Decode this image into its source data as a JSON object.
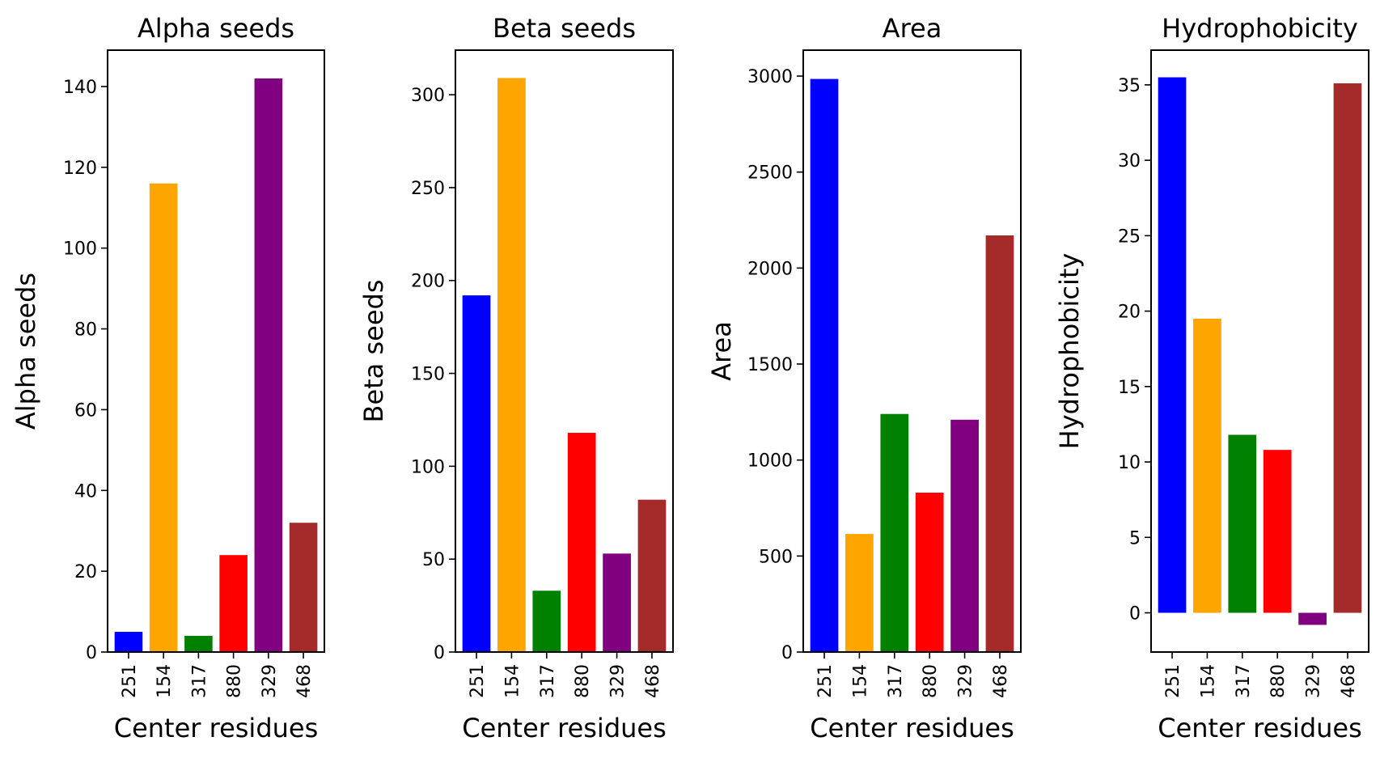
{
  "chart_data": [
    {
      "type": "bar",
      "title": "Alpha seeds",
      "xlabel": "Center residues",
      "ylabel": "Alpha seeds",
      "categories": [
        "251",
        "154",
        "317",
        "880",
        "329",
        "468"
      ],
      "values": [
        5,
        116,
        4,
        24,
        142,
        32
      ],
      "colors": [
        "#0000ff",
        "#ffa500",
        "#008000",
        "#ff0000",
        "#800080",
        "#a52a2a"
      ],
      "ylim": [
        0,
        149
      ],
      "yticks": [
        0,
        20,
        40,
        60,
        80,
        100,
        120,
        140
      ],
      "grid": false
    },
    {
      "type": "bar",
      "title": "Beta seeds",
      "xlabel": "Center residues",
      "ylabel": "Beta seeds",
      "categories": [
        "251",
        "154",
        "317",
        "880",
        "329",
        "468"
      ],
      "values": [
        192,
        309,
        33,
        118,
        53,
        82
      ],
      "colors": [
        "#0000ff",
        "#ffa500",
        "#008000",
        "#ff0000",
        "#800080",
        "#a52a2a"
      ],
      "ylim": [
        0,
        324
      ],
      "yticks": [
        0,
        50,
        100,
        150,
        200,
        250,
        300
      ],
      "grid": false
    },
    {
      "type": "bar",
      "title": "Area",
      "xlabel": "Center residues",
      "ylabel": "Area",
      "categories": [
        "251",
        "154",
        "317",
        "880",
        "329",
        "468"
      ],
      "values": [
        2985,
        615,
        1240,
        830,
        1210,
        2170
      ],
      "colors": [
        "#0000ff",
        "#ffa500",
        "#008000",
        "#ff0000",
        "#800080",
        "#a52a2a"
      ],
      "ylim": [
        0,
        3135
      ],
      "yticks": [
        0,
        500,
        1000,
        1500,
        2000,
        2500,
        3000
      ],
      "grid": false
    },
    {
      "type": "bar",
      "title": "Hydrophobicity",
      "xlabel": "Center residues",
      "ylabel": "Hydrophobicity",
      "categories": [
        "251",
        "154",
        "317",
        "880",
        "329",
        "468"
      ],
      "values": [
        35.5,
        19.5,
        11.8,
        10.8,
        -0.8,
        35.1
      ],
      "colors": [
        "#0000ff",
        "#ffa500",
        "#008000",
        "#ff0000",
        "#800080",
        "#a52a2a"
      ],
      "ylim": [
        -2.6,
        37.3
      ],
      "yticks": [
        0,
        5,
        10,
        15,
        20,
        25,
        30,
        35
      ],
      "grid": false
    }
  ]
}
